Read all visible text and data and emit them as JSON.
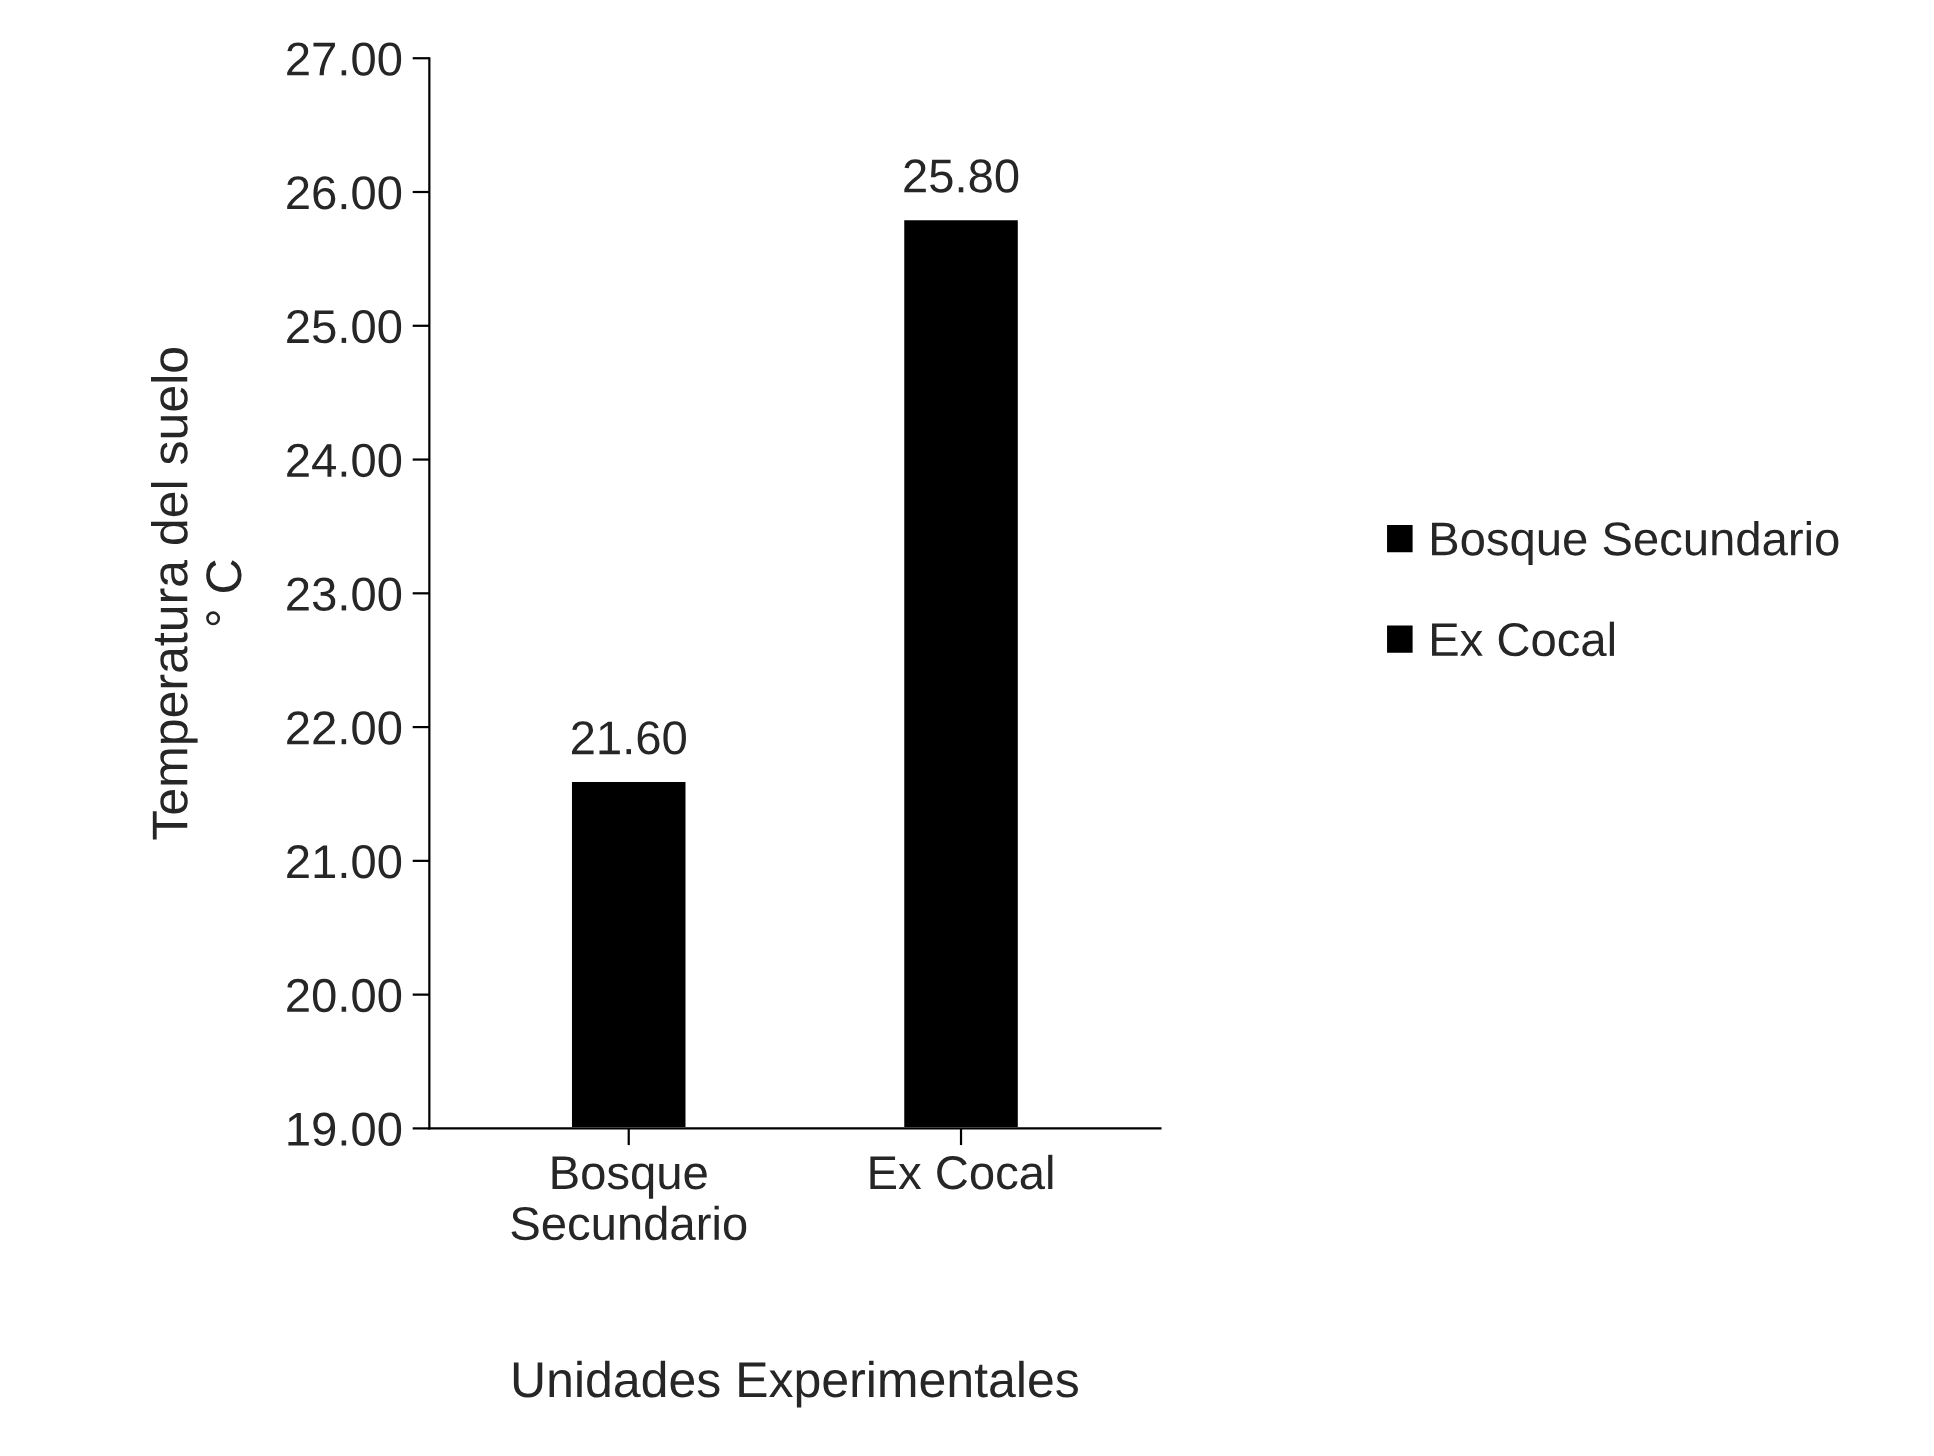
{
  "chart_data": {
    "type": "bar",
    "xlabel": "Unidades Experimentales",
    "ylabel": "Temperatura del suelo\n° C",
    "categories": [
      "Bosque\nSecundario",
      "Ex Cocal"
    ],
    "series": [
      {
        "name": "Bosque Secundario",
        "color": "#000000",
        "values": [
          21.6,
          null
        ],
        "value_labels": [
          "21.60",
          null
        ]
      },
      {
        "name": "Ex Cocal",
        "color": "#000000",
        "values": [
          null,
          25.8
        ],
        "value_labels": [
          null,
          "25.80"
        ]
      }
    ],
    "ylim": [
      19,
      27
    ],
    "yticks": [
      {
        "value": 19,
        "label": "19.00"
      },
      {
        "value": 20,
        "label": "20.00"
      },
      {
        "value": 21,
        "label": "21.00"
      },
      {
        "value": 22,
        "label": "22.00"
      },
      {
        "value": 23,
        "label": "23.00"
      },
      {
        "value": 24,
        "label": "24.00"
      },
      {
        "value": 25,
        "label": "25.00"
      },
      {
        "value": 26,
        "label": "26.00"
      },
      {
        "value": 27,
        "label": "27.00"
      }
    ],
    "grid": false,
    "legend": "right"
  }
}
